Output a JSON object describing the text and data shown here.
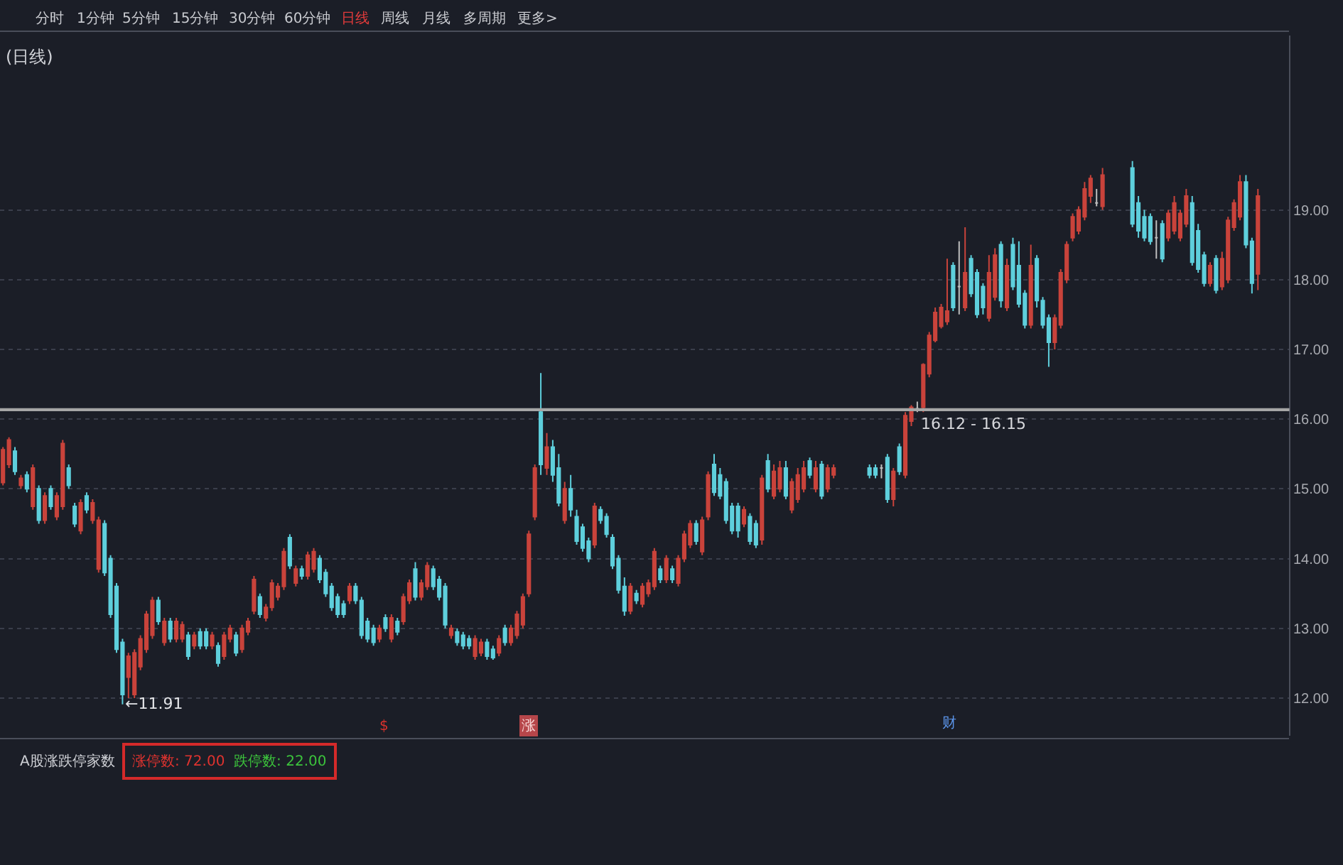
{
  "chart_data": [
    {
      "type": "candlestick",
      "title": "(日线)",
      "categories": [
        null,
        null,
        null,
        null,
        null,
        null,
        null,
        null,
        null,
        null,
        null,
        null,
        null,
        null,
        null,
        null,
        null,
        null,
        null,
        null,
        null,
        null,
        null,
        null,
        null,
        null,
        null,
        null,
        null,
        null,
        null,
        null,
        null,
        null,
        null,
        null,
        null,
        null,
        null,
        null,
        null,
        null,
        null,
        null,
        null,
        null,
        null,
        null,
        null,
        null,
        null,
        null,
        null,
        null,
        null,
        null,
        null,
        null,
        null,
        null,
        null,
        null,
        null,
        null,
        null,
        null,
        null,
        null,
        null,
        null,
        null,
        null,
        null,
        null,
        null,
        null,
        null,
        null,
        null,
        null,
        null,
        null,
        null,
        null,
        null,
        null,
        null,
        null,
        null,
        null,
        null,
        null,
        null,
        null,
        null,
        null,
        null,
        null,
        null,
        null,
        null,
        null,
        null,
        null,
        null,
        null,
        null,
        null,
        null,
        null,
        null,
        null,
        null,
        null,
        null,
        null,
        null,
        null,
        null,
        null,
        null,
        null,
        null,
        null,
        null,
        null,
        null,
        null,
        null,
        null,
        null,
        null,
        null,
        null,
        null,
        null,
        null,
        null,
        null,
        null,
        null,
        null,
        null,
        null,
        null,
        null,
        null,
        null,
        null,
        null,
        null,
        null,
        null,
        null,
        null,
        null,
        null,
        null,
        null,
        null,
        null,
        null,
        null,
        null,
        null,
        null,
        null,
        null,
        null,
        null,
        null,
        null,
        null,
        null,
        null,
        null,
        null,
        null,
        null,
        null,
        null,
        null,
        null,
        null,
        null,
        null,
        null,
        null,
        null,
        null,
        null,
        null,
        null,
        null,
        null,
        null,
        null,
        null,
        null,
        null,
        null,
        null,
        null,
        null,
        null,
        null,
        null,
        null,
        null,
        null,
        null
      ],
      "ohlc": [
        [
          15.09,
          15.6,
          15.05,
          15.56
        ],
        [
          15.35,
          15.74,
          15.3,
          15.7
        ],
        [
          15.54,
          15.6,
          15.2,
          15.25
        ],
        [
          15.05,
          15.2,
          15.0,
          15.15
        ],
        [
          15.2,
          15.25,
          14.95,
          15.0
        ],
        [
          14.75,
          15.35,
          14.7,
          15.3
        ],
        [
          15.0,
          15.05,
          14.5,
          14.55
        ],
        [
          14.55,
          14.95,
          14.5,
          14.9
        ],
        [
          15.0,
          15.05,
          14.7,
          14.75
        ],
        [
          14.6,
          14.95,
          14.55,
          14.9
        ],
        [
          14.75,
          15.7,
          14.7,
          15.65
        ],
        [
          15.3,
          15.35,
          15.0,
          15.05
        ],
        [
          14.75,
          14.8,
          14.45,
          14.5
        ],
        [
          14.4,
          14.85,
          14.35,
          14.8
        ],
        [
          14.9,
          14.95,
          14.65,
          14.7
        ],
        [
          14.55,
          14.85,
          14.5,
          14.8
        ],
        [
          13.85,
          14.6,
          13.8,
          14.55
        ],
        [
          14.5,
          14.55,
          13.75,
          13.8
        ],
        [
          14.0,
          14.05,
          13.15,
          13.2
        ],
        [
          13.6,
          13.65,
          12.65,
          12.7
        ],
        [
          12.8,
          12.85,
          11.91,
          12.05
        ],
        [
          12.3,
          12.65,
          12.0,
          12.6
        ],
        [
          12.05,
          12.7,
          12.0,
          12.65
        ],
        [
          12.45,
          12.9,
          12.4,
          12.85
        ],
        [
          12.7,
          13.25,
          12.65,
          13.2
        ],
        [
          12.9,
          13.45,
          12.85,
          13.4
        ],
        [
          13.4,
          13.45,
          13.05,
          13.1
        ],
        [
          12.8,
          13.15,
          12.75,
          13.1
        ],
        [
          13.1,
          13.15,
          12.8,
          12.85
        ],
        [
          12.85,
          13.15,
          12.8,
          13.1
        ],
        [
          12.85,
          13.1,
          12.8,
          13.05
        ],
        [
          12.9,
          12.95,
          12.55,
          12.6
        ],
        [
          12.75,
          12.95,
          12.7,
          12.9
        ],
        [
          12.95,
          13.0,
          12.7,
          12.75
        ],
        [
          12.95,
          13.0,
          12.7,
          12.75
        ],
        [
          12.75,
          12.95,
          12.7,
          12.9
        ],
        [
          12.75,
          12.8,
          12.45,
          12.5
        ],
        [
          12.6,
          12.95,
          12.55,
          12.9
        ],
        [
          12.85,
          13.05,
          12.8,
          13.0
        ],
        [
          12.9,
          12.95,
          12.6,
          12.65
        ],
        [
          12.7,
          13.05,
          12.65,
          13.0
        ],
        [
          12.95,
          13.15,
          12.9,
          13.1
        ],
        [
          13.25,
          13.75,
          13.2,
          13.7
        ],
        [
          13.45,
          13.5,
          13.15,
          13.2
        ],
        [
          13.15,
          13.35,
          13.1,
          13.3
        ],
        [
          13.3,
          13.7,
          13.25,
          13.65
        ],
        [
          13.45,
          13.65,
          13.4,
          13.6
        ],
        [
          13.6,
          14.15,
          13.55,
          14.1
        ],
        [
          14.3,
          14.35,
          13.85,
          13.9
        ],
        [
          13.65,
          13.9,
          13.6,
          13.85
        ],
        [
          13.85,
          13.9,
          13.7,
          13.75
        ],
        [
          13.75,
          14.1,
          13.7,
          14.05
        ],
        [
          13.85,
          14.15,
          13.8,
          14.1
        ],
        [
          14.0,
          14.05,
          13.65,
          13.7
        ],
        [
          13.8,
          13.85,
          13.45,
          13.5
        ],
        [
          13.6,
          13.65,
          13.25,
          13.3
        ],
        [
          13.45,
          13.5,
          13.15,
          13.2
        ],
        [
          13.35,
          13.4,
          13.15,
          13.2
        ],
        [
          13.4,
          13.65,
          13.35,
          13.6
        ],
        [
          13.6,
          13.65,
          13.35,
          13.4
        ],
        [
          13.4,
          13.45,
          12.85,
          12.9
        ],
        [
          13.1,
          13.15,
          12.8,
          12.85
        ],
        [
          13.0,
          13.05,
          12.75,
          12.8
        ],
        [
          12.85,
          13.05,
          12.8,
          13.0
        ],
        [
          13.15,
          13.2,
          12.95,
          13.0
        ],
        [
          12.85,
          13.2,
          12.8,
          13.15
        ],
        [
          13.1,
          13.15,
          12.9,
          12.95
        ],
        [
          13.1,
          13.5,
          13.05,
          13.45
        ],
        [
          13.4,
          13.7,
          13.35,
          13.65
        ],
        [
          13.85,
          13.95,
          13.4,
          13.45
        ],
        [
          13.45,
          13.7,
          13.4,
          13.65
        ],
        [
          13.6,
          13.95,
          13.55,
          13.9
        ],
        [
          13.85,
          13.9,
          13.55,
          13.6
        ],
        [
          13.7,
          13.75,
          13.4,
          13.45
        ],
        [
          13.6,
          13.65,
          13.0,
          13.05
        ],
        [
          12.9,
          13.05,
          12.85,
          13.0
        ],
        [
          12.95,
          13.0,
          12.75,
          12.8
        ],
        [
          12.9,
          12.95,
          12.7,
          12.75
        ],
        [
          12.85,
          12.9,
          12.7,
          12.75
        ],
        [
          12.6,
          12.9,
          12.55,
          12.85
        ],
        [
          12.65,
          12.85,
          12.6,
          12.8
        ],
        [
          12.8,
          12.85,
          12.55,
          12.6
        ],
        [
          12.7,
          12.75,
          12.55,
          12.58
        ],
        [
          12.65,
          12.9,
          12.6,
          12.85
        ],
        [
          13.0,
          13.05,
          12.75,
          12.8
        ],
        [
          12.8,
          13.05,
          12.75,
          13.0
        ],
        [
          12.9,
          13.25,
          12.85,
          13.2
        ],
        [
          13.05,
          13.5,
          13.0,
          13.45
        ],
        [
          13.5,
          14.4,
          13.45,
          14.35
        ],
        [
          14.6,
          15.35,
          14.55,
          15.3
        ],
        [
          16.1,
          16.66,
          15.2,
          15.35
        ],
        [
          15.3,
          15.8,
          15.2,
          15.6
        ],
        [
          15.6,
          15.7,
          15.1,
          15.2
        ],
        [
          15.3,
          15.5,
          14.75,
          14.8
        ],
        [
          14.55,
          15.1,
          14.5,
          15.0
        ],
        [
          15.0,
          15.2,
          14.6,
          14.7
        ],
        [
          14.6,
          14.7,
          14.2,
          14.25
        ],
        [
          14.45,
          14.5,
          14.1,
          14.15
        ],
        [
          14.25,
          14.3,
          13.95,
          14.0
        ],
        [
          14.2,
          14.8,
          14.15,
          14.75
        ],
        [
          14.7,
          14.75,
          14.5,
          14.55
        ],
        [
          14.6,
          14.65,
          14.3,
          14.35
        ],
        [
          14.3,
          14.35,
          13.85,
          13.9
        ],
        [
          14.0,
          14.05,
          13.5,
          13.55
        ],
        [
          13.6,
          13.73,
          13.18,
          13.25
        ],
        [
          13.25,
          13.65,
          13.2,
          13.6
        ],
        [
          13.5,
          13.55,
          13.35,
          13.4
        ],
        [
          13.35,
          13.65,
          13.3,
          13.6
        ],
        [
          13.5,
          13.7,
          13.45,
          13.65
        ],
        [
          13.6,
          14.15,
          13.55,
          14.1
        ],
        [
          13.85,
          13.9,
          13.65,
          13.7
        ],
        [
          13.7,
          14.05,
          13.65,
          14.0
        ],
        [
          13.85,
          13.9,
          13.65,
          13.7
        ],
        [
          13.65,
          14.05,
          13.6,
          14.0
        ],
        [
          14.0,
          14.4,
          13.95,
          14.35
        ],
        [
          14.2,
          14.55,
          14.15,
          14.5
        ],
        [
          14.5,
          14.55,
          14.2,
          14.25
        ],
        [
          14.1,
          14.6,
          14.05,
          14.55
        ],
        [
          14.6,
          15.25,
          14.55,
          15.2
        ],
        [
          15.35,
          15.5,
          14.9,
          14.95
        ],
        [
          15.2,
          15.3,
          14.85,
          14.9
        ],
        [
          15.1,
          15.15,
          14.5,
          14.55
        ],
        [
          14.75,
          14.8,
          14.35,
          14.4
        ],
        [
          14.75,
          14.8,
          14.3,
          14.4
        ],
        [
          14.5,
          14.75,
          14.45,
          14.7
        ],
        [
          14.6,
          14.65,
          14.2,
          14.25
        ],
        [
          14.5,
          14.55,
          14.15,
          14.2
        ],
        [
          14.27,
          15.2,
          14.2,
          15.15
        ],
        [
          15.4,
          15.5,
          14.95,
          15.0
        ],
        [
          14.9,
          15.35,
          14.85,
          15.25
        ],
        [
          15.0,
          15.4,
          14.95,
          15.3
        ],
        [
          15.3,
          15.4,
          14.85,
          14.9
        ],
        [
          14.7,
          15.15,
          14.65,
          15.1
        ],
        [
          14.85,
          15.3,
          14.8,
          15.2
        ],
        [
          15.0,
          15.4,
          14.95,
          15.3
        ],
        [
          15.4,
          15.45,
          15.15,
          15.2
        ],
        [
          15.0,
          15.4,
          14.95,
          15.3
        ],
        [
          15.35,
          15.4,
          14.85,
          14.9
        ],
        [
          15.0,
          15.35,
          14.95,
          15.3
        ],
        [
          15.2,
          15.35,
          15.15,
          15.3
        ],
        null,
        null,
        null,
        null,
        null,
        [
          15.3,
          15.35,
          15.15,
          15.2
        ],
        [
          15.3,
          15.35,
          15.15,
          15.2
        ],
        [
          15.3,
          15.35,
          15.15,
          15.3
        ],
        [
          15.45,
          15.5,
          14.8,
          14.85
        ],
        [
          14.85,
          15.3,
          14.75,
          15.25
        ],
        [
          15.6,
          15.65,
          15.2,
          15.25
        ],
        [
          15.2,
          16.1,
          15.15,
          16.05
        ],
        [
          15.97,
          16.2,
          15.9,
          16.17
        ],
        [
          16.15,
          16.25,
          16.1,
          16.15
        ],
        [
          16.17,
          16.8,
          16.1,
          16.78
        ],
        [
          16.65,
          17.25,
          16.6,
          17.2
        ],
        [
          17.13,
          17.6,
          17.1,
          17.53
        ],
        [
          17.33,
          17.65,
          17.3,
          17.6
        ],
        [
          17.4,
          18.3,
          17.35,
          17.55
        ],
        [
          18.2,
          18.25,
          17.55,
          17.6
        ],
        [
          17.9,
          18.55,
          17.5,
          17.9
        ],
        [
          17.6,
          18.75,
          17.55,
          18.1
        ],
        [
          18.3,
          18.35,
          17.75,
          17.8
        ],
        [
          18.1,
          18.15,
          17.45,
          17.5
        ],
        [
          17.9,
          17.95,
          17.5,
          17.6
        ],
        [
          17.45,
          18.35,
          17.4,
          18.1
        ],
        [
          17.75,
          18.45,
          17.7,
          18.35
        ],
        [
          18.5,
          18.55,
          17.6,
          17.7
        ],
        [
          17.6,
          18.3,
          17.55,
          18.2
        ],
        [
          18.5,
          18.6,
          17.85,
          17.9
        ],
        [
          18.2,
          18.55,
          17.6,
          17.65
        ],
        [
          17.8,
          17.85,
          17.3,
          17.35
        ],
        [
          17.35,
          18.5,
          17.3,
          18.2
        ],
        [
          18.3,
          18.35,
          17.6,
          17.7
        ],
        [
          17.7,
          17.75,
          17.3,
          17.35
        ],
        [
          17.45,
          17.5,
          16.75,
          17.1
        ],
        [
          17.1,
          17.5,
          17.0,
          17.45
        ],
        [
          17.35,
          18.15,
          17.3,
          18.1
        ],
        [
          18.0,
          18.55,
          17.95,
          18.5
        ],
        [
          18.6,
          18.95,
          18.55,
          18.9
        ],
        [
          18.7,
          19.05,
          18.65,
          19.0
        ],
        [
          18.9,
          19.4,
          18.85,
          19.3
        ],
        [
          19.2,
          19.5,
          19.1,
          19.45
        ],
        [
          19.1,
          19.3,
          19.05,
          19.1
        ],
        [
          19.05,
          19.6,
          19.0,
          19.5
        ],
        null,
        null,
        null,
        null,
        [
          19.6,
          19.7,
          18.75,
          18.8
        ],
        [
          19.1,
          19.2,
          18.6,
          18.7
        ],
        [
          18.9,
          19.0,
          18.55,
          18.6
        ],
        [
          18.9,
          18.95,
          18.5,
          18.55
        ],
        [
          18.6,
          18.85,
          18.3,
          18.6
        ],
        [
          18.8,
          18.85,
          18.25,
          18.3
        ],
        [
          18.6,
          19.0,
          18.55,
          18.95
        ],
        [
          18.7,
          19.2,
          18.65,
          19.1
        ],
        [
          18.6,
          19.0,
          18.55,
          18.95
        ],
        [
          18.8,
          19.3,
          18.75,
          19.2
        ],
        [
          19.1,
          19.2,
          18.2,
          18.25
        ],
        [
          18.7,
          18.8,
          18.1,
          18.15
        ],
        [
          18.35,
          18.4,
          17.9,
          17.95
        ],
        [
          17.95,
          18.25,
          17.9,
          18.2
        ],
        [
          18.3,
          18.35,
          17.8,
          17.85
        ],
        [
          17.9,
          18.4,
          17.85,
          18.3
        ],
        [
          18.0,
          18.9,
          17.95,
          18.85
        ],
        [
          18.75,
          19.15,
          18.7,
          19.1
        ],
        [
          18.9,
          19.5,
          18.85,
          19.4
        ],
        [
          19.4,
          19.5,
          18.45,
          18.5
        ],
        [
          18.55,
          18.6,
          17.8,
          17.95
        ],
        [
          18.08,
          19.3,
          17.85,
          19.2
        ]
      ],
      "colors": [
        "#c9433b",
        "#c9433b",
        "#5ecfdc",
        "#c9433b",
        "#5ecfdc",
        "#c9433b",
        "#5ecfdc",
        "#c9433b",
        "#5ecfdc",
        "#c9433b",
        "#c9433b",
        "#5ecfdc",
        "#5ecfdc",
        "#c9433b",
        "#5ecfdc",
        "#c9433b",
        "#c9433b",
        "#5ecfdc",
        "#5ecfdc",
        "#5ecfdc",
        "#5ecfdc",
        "#c9433b",
        "#c9433b",
        "#c9433b",
        "#c9433b",
        "#c9433b",
        "#5ecfdc",
        "#c9433b",
        "#5ecfdc",
        "#c9433b",
        "#c9433b",
        "#5ecfdc",
        "#c9433b",
        "#5ecfdc",
        "#5ecfdc",
        "#c9433b",
        "#5ecfdc",
        "#c9433b",
        "#c9433b",
        "#5ecfdc",
        "#c9433b",
        "#c9433b",
        "#c9433b",
        "#5ecfdc",
        "#c9433b",
        "#c9433b",
        "#c9433b",
        "#c9433b",
        "#5ecfdc",
        "#c9433b",
        "#5ecfdc",
        "#c9433b",
        "#c9433b",
        "#5ecfdc",
        "#5ecfdc",
        "#5ecfdc",
        "#5ecfdc",
        "#5ecfdc",
        "#c9433b",
        "#5ecfdc",
        "#5ecfdc",
        "#5ecfdc",
        "#5ecfdc",
        "#c9433b",
        "#5ecfdc",
        "#c9433b",
        "#5ecfdc",
        "#c9433b",
        "#c9433b",
        "#5ecfdc",
        "#c9433b",
        "#c9433b",
        "#5ecfdc",
        "#5ecfdc",
        "#5ecfdc",
        "#c9433b",
        "#5ecfdc",
        "#5ecfdc",
        "#5ecfdc",
        "#c9433b",
        "#c9433b",
        "#5ecfdc",
        "#5ecfdc",
        "#c9433b",
        "#5ecfdc",
        "#c9433b",
        "#c9433b",
        "#c9433b",
        "#c9433b",
        "#c9433b",
        "#5ecfdc",
        "#c9433b",
        "#5ecfdc",
        "#5ecfdc",
        "#c9433b",
        "#5ecfdc",
        "#5ecfdc",
        "#5ecfdc",
        "#5ecfdc",
        "#c9433b",
        "#5ecfdc",
        "#5ecfdc",
        "#5ecfdc",
        "#5ecfdc",
        "#5ecfdc",
        "#c9433b",
        "#5ecfdc",
        "#c9433b",
        "#c9433b",
        "#c9433b",
        "#5ecfdc",
        "#c9433b",
        "#5ecfdc",
        "#c9433b",
        "#c9433b",
        "#c9433b",
        "#5ecfdc",
        "#c9433b",
        "#c9433b",
        "#5ecfdc",
        "#5ecfdc",
        "#5ecfdc",
        "#5ecfdc",
        "#5ecfdc",
        "#c9433b",
        "#5ecfdc",
        "#5ecfdc",
        "#c9433b",
        "#5ecfdc",
        "#c9433b",
        "#c9433b",
        "#5ecfdc",
        "#c9433b",
        "#c9433b",
        "#c9433b",
        "#5ecfdc",
        "#c9433b",
        "#5ecfdc",
        "#c9433b",
        "#c9433b",
        null,
        null,
        null,
        null,
        null,
        "#5ecfdc",
        "#5ecfdc",
        "#bdbdbd",
        "#5ecfdc",
        "#c9433b",
        "#5ecfdc",
        "#c9433b",
        "#c9433b",
        "#bdbdbd",
        "#c9433b",
        "#c9433b",
        "#c9433b",
        "#c9433b",
        "#c9433b",
        "#5ecfdc",
        "#bdbdbd",
        "#c9433b",
        "#5ecfdc",
        "#5ecfdc",
        "#5ecfdc",
        "#c9433b",
        "#c9433b",
        "#5ecfdc",
        "#c9433b",
        "#5ecfdc",
        "#5ecfdc",
        "#5ecfdc",
        "#c9433b",
        "#5ecfdc",
        "#5ecfdc",
        "#5ecfdc",
        "#c9433b",
        "#c9433b",
        "#c9433b",
        "#c9433b",
        "#c9433b",
        "#c9433b",
        "#c9433b",
        "#bdbdbd",
        "#c9433b",
        null,
        null,
        null,
        null,
        "#5ecfdc",
        "#5ecfdc",
        "#5ecfdc",
        "#5ecfdc",
        "#bdbdbd",
        "#5ecfdc",
        "#c9433b",
        "#c9433b",
        "#c9433b",
        "#c9433b",
        "#5ecfdc",
        "#5ecfdc",
        "#5ecfdc",
        "#c9433b",
        "#5ecfdc",
        "#c9433b",
        "#c9433b",
        "#c9433b",
        "#c9433b",
        "#5ecfdc",
        "#5ecfdc",
        "#c9433b"
      ],
      "ylim": [
        11.46,
        21.5
      ],
      "yticks": [
        {
          "value": 12,
          "label": "12.00"
        },
        {
          "value": 13,
          "label": "13.00"
        },
        {
          "value": 14,
          "label": "14.00"
        },
        {
          "value": 15,
          "label": "15.00"
        },
        {
          "value": 16,
          "label": "16.00"
        },
        {
          "value": 17,
          "label": "17.00"
        },
        {
          "value": 18,
          "label": "18.00"
        },
        {
          "value": 19,
          "label": "19.00"
        }
      ],
      "grid": "y",
      "tick_labels": "y",
      "bands": [
        {
          "axis": "y",
          "from": 16.12,
          "to": 16.15,
          "label": "16.12 - 16.15",
          "color": "#a6a6a6"
        }
      ],
      "annotations": [
        "←11.91",
        "$",
        "涨",
        "财",
        "分时",
        "1分钟",
        "5分钟",
        "15分钟",
        "30分钟",
        "60分钟",
        "日线",
        "周线",
        "月线",
        "多周期",
        "更多>"
      ]
    },
    {
      "type": "other",
      "title": "A股涨跌停家数",
      "annotations": [
        "涨停数: 72.00",
        "跌停数: 22.00"
      ]
    }
  ]
}
